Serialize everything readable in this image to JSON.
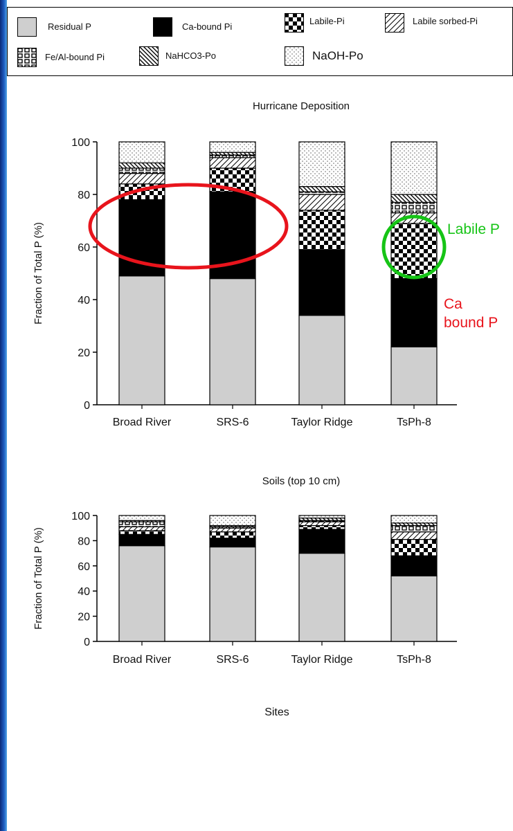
{
  "legend": [
    {
      "key": "residual",
      "label": "Residual P",
      "fill": "url(#pGray)"
    },
    {
      "key": "ca",
      "label": "Ca-bound Pi",
      "fill": "#000000"
    },
    {
      "key": "labile",
      "label": "Labile-Pi",
      "fill": "url(#pCheck)"
    },
    {
      "key": "sorbed",
      "label": "Labile sorbed-Pi",
      "fill": "url(#pHatch)"
    },
    {
      "key": "feal",
      "label": "Fe/Al-bound Pi",
      "fill": "url(#pGrid)"
    },
    {
      "key": "nahco3",
      "label": "NaHCO3-Po",
      "fill": "url(#pBack)"
    },
    {
      "key": "naoh",
      "label": "NaOH-Po",
      "fill": "url(#pDots)"
    }
  ],
  "colors": {
    "residual": "#cfcfcf",
    "red_annotation": "#e8141c",
    "green_annotation": "#16c416"
  },
  "chart_data": [
    {
      "type": "bar",
      "stacked": true,
      "title": "Hurricane Deposition",
      "ylabel": "Fraction of Total P (%)",
      "xlabel": "",
      "ylim": [
        0,
        100
      ],
      "yticks": [
        0,
        20,
        40,
        60,
        80,
        100
      ],
      "categories": [
        "Broad River",
        "SRS-6",
        "Taylor Ridge",
        "TsPh-8"
      ],
      "series": [
        {
          "name": "Residual P",
          "key": "residual",
          "values": [
            49,
            48,
            34,
            22
          ]
        },
        {
          "name": "Ca-bound Pi",
          "key": "ca",
          "values": [
            29,
            33,
            25,
            26
          ]
        },
        {
          "name": "Labile-Pi",
          "key": "labile",
          "values": [
            6,
            9,
            15,
            21
          ]
        },
        {
          "name": "Labile sorbed-Pi",
          "key": "sorbed",
          "values": [
            4,
            4,
            6,
            4
          ]
        },
        {
          "name": "Fe/Al-bound Pi",
          "key": "feal",
          "values": [
            2,
            1,
            1,
            4
          ]
        },
        {
          "name": "NaHCO3-Po",
          "key": "nahco3",
          "values": [
            2,
            1,
            2,
            3
          ]
        },
        {
          "name": "NaOH-Po",
          "key": "naoh",
          "values": [
            8,
            4,
            17,
            20
          ]
        }
      ]
    },
    {
      "type": "bar",
      "stacked": true,
      "title": "Soils (top 10 cm)",
      "ylabel": "Fraction of Total P (%)",
      "xlabel": "Sites",
      "ylim": [
        0,
        100
      ],
      "yticks": [
        0,
        20,
        40,
        60,
        80,
        100
      ],
      "categories": [
        "Broad River",
        "SRS-6",
        "Taylor Ridge",
        "TsPh-8"
      ],
      "series": [
        {
          "name": "Residual P",
          "key": "residual",
          "values": [
            76,
            75,
            70,
            52
          ]
        },
        {
          "name": "Ca-bound Pi",
          "key": "ca",
          "values": [
            9,
            7,
            19,
            16
          ]
        },
        {
          "name": "Labile-Pi",
          "key": "labile",
          "values": [
            3,
            5,
            3,
            13
          ]
        },
        {
          "name": "Labile sorbed-Pi",
          "key": "sorbed",
          "values": [
            3,
            3,
            3,
            6
          ]
        },
        {
          "name": "Fe/Al-bound Pi",
          "key": "feal",
          "values": [
            4,
            1,
            1,
            5
          ]
        },
        {
          "name": "NaHCO3-Po",
          "key": "nahco3",
          "values": [
            1,
            1,
            2,
            2
          ]
        },
        {
          "name": "NaOH-Po",
          "key": "naoh",
          "values": [
            4,
            8,
            2,
            6
          ]
        }
      ]
    }
  ],
  "annotations": {
    "labile_label": "Labile P",
    "ca_label_line1": "Ca",
    "ca_label_line2": "bound P"
  }
}
